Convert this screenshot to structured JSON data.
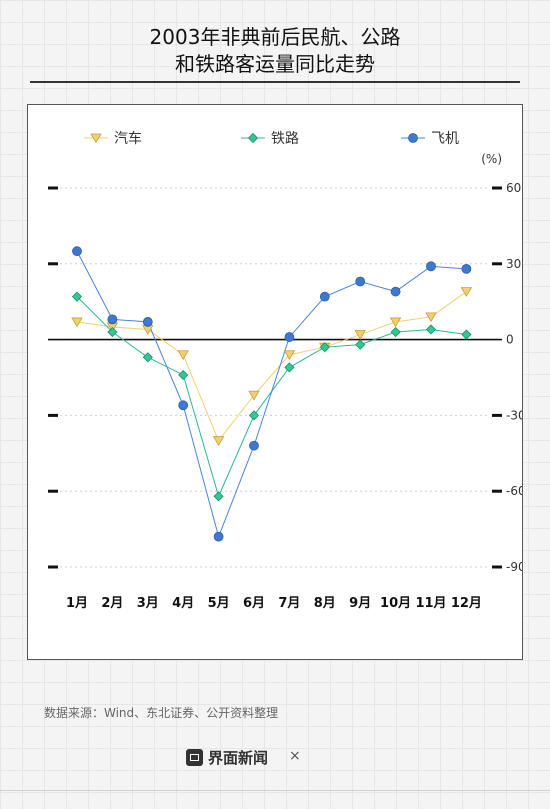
{
  "title_line1": "2003年非典前后民航、公路",
  "title_line2": "和铁路客运量同比走势",
  "source": "数据来源：Wind、东北证券、公开资料整理",
  "footer": {
    "brand_name": "界面新闻",
    "separator": "×"
  },
  "chart_data": {
    "type": "line",
    "categories": [
      "1月",
      "2月",
      "3月",
      "4月",
      "5月",
      "6月",
      "7月",
      "8月",
      "9月",
      "10月",
      "11月",
      "12月"
    ],
    "unit_label": "(%)",
    "ylim": [
      -90,
      60
    ],
    "yticks": [
      60,
      30,
      0,
      -30,
      -60,
      -90
    ],
    "ytick_labels": [
      "60",
      "30",
      "0",
      "-30",
      "-60",
      "-90"
    ],
    "grid": "dashed horizontal",
    "legend_position": "top",
    "series": [
      {
        "name": "汽车",
        "marker": "triangle-down",
        "color": "#f2cf72",
        "marker_fill": "#f2cf72",
        "values": [
          7,
          5,
          4,
          -6,
          -40,
          -22,
          -6,
          -3,
          2,
          7,
          9,
          19
        ]
      },
      {
        "name": "铁路",
        "marker": "diamond",
        "color": "#2db88c",
        "marker_fill": "#2ec995",
        "values": [
          17,
          3,
          -7,
          -14,
          -62,
          -30,
          -11,
          -3,
          -2,
          3,
          4,
          2
        ]
      },
      {
        "name": "飞机",
        "marker": "circle",
        "color": "#4a84d4",
        "marker_fill": "#3f78d1",
        "values": [
          35,
          8,
          7,
          -26,
          -78,
          -42,
          1,
          17,
          23,
          19,
          29,
          28
        ]
      }
    ]
  }
}
